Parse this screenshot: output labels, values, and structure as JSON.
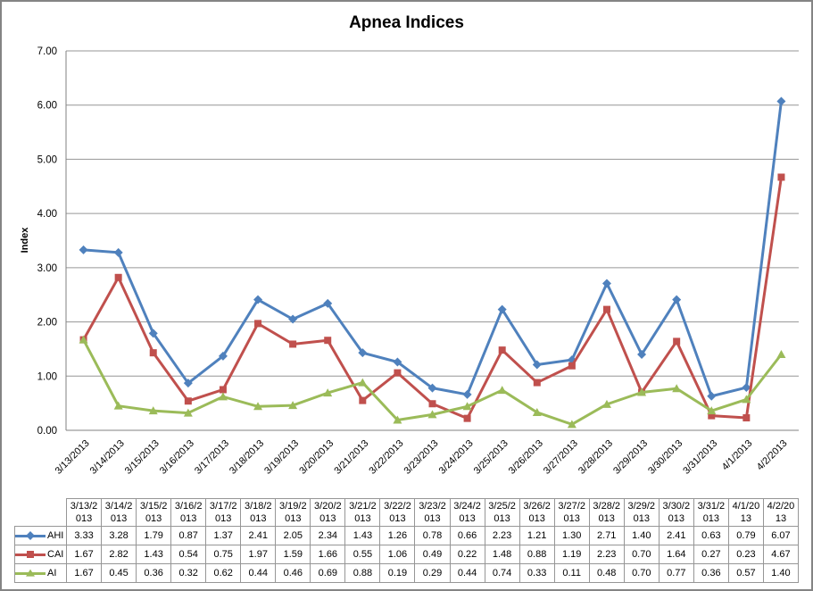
{
  "window": {
    "background": "#FFFFFF",
    "border_color": "#848484"
  },
  "chart_data": {
    "type": "line",
    "title": "Apnea Indices",
    "xlabel": "",
    "ylabel": "Index",
    "ylim": [
      0,
      7
    ],
    "ytick_step": 1,
    "ytick_decimals": 2,
    "grid": true,
    "legend_position": "data-table-left",
    "data_table_shown": true,
    "categories": [
      "3/13/2013",
      "3/14/2013",
      "3/15/2013",
      "3/16/2013",
      "3/17/2013",
      "3/18/2013",
      "3/19/2013",
      "3/20/2013",
      "3/21/2013",
      "3/22/2013",
      "3/23/2013",
      "3/24/2013",
      "3/25/2013",
      "3/26/2013",
      "3/27/2013",
      "3/28/2013",
      "3/29/2013",
      "3/30/2013",
      "3/31/2013",
      "4/1/2013",
      "4/2/2013"
    ],
    "series": [
      {
        "name": "AHI",
        "color": "#4F81BD",
        "marker": "diamond",
        "values": [
          3.33,
          3.28,
          1.79,
          0.87,
          1.37,
          2.41,
          2.05,
          2.34,
          1.43,
          1.26,
          0.78,
          0.66,
          2.23,
          1.21,
          1.3,
          2.71,
          1.4,
          2.41,
          0.63,
          0.79,
          6.07
        ]
      },
      {
        "name": "CAI",
        "color": "#C0504D",
        "marker": "square",
        "values": [
          1.67,
          2.82,
          1.43,
          0.54,
          0.75,
          1.97,
          1.59,
          1.66,
          0.55,
          1.06,
          0.49,
          0.22,
          1.48,
          0.88,
          1.19,
          2.23,
          0.7,
          1.64,
          0.27,
          0.23,
          4.67
        ]
      },
      {
        "name": "AI",
        "color": "#9BBB59",
        "marker": "triangle",
        "values": [
          1.67,
          0.45,
          0.36,
          0.32,
          0.62,
          0.44,
          0.46,
          0.69,
          0.88,
          0.19,
          0.29,
          0.44,
          0.74,
          0.33,
          0.11,
          0.48,
          0.7,
          0.77,
          0.36,
          0.57,
          1.4
        ]
      }
    ],
    "colors": {
      "gridline": "#969696",
      "axis": "#808080",
      "table_border": "#969696",
      "text": "#000000"
    }
  }
}
